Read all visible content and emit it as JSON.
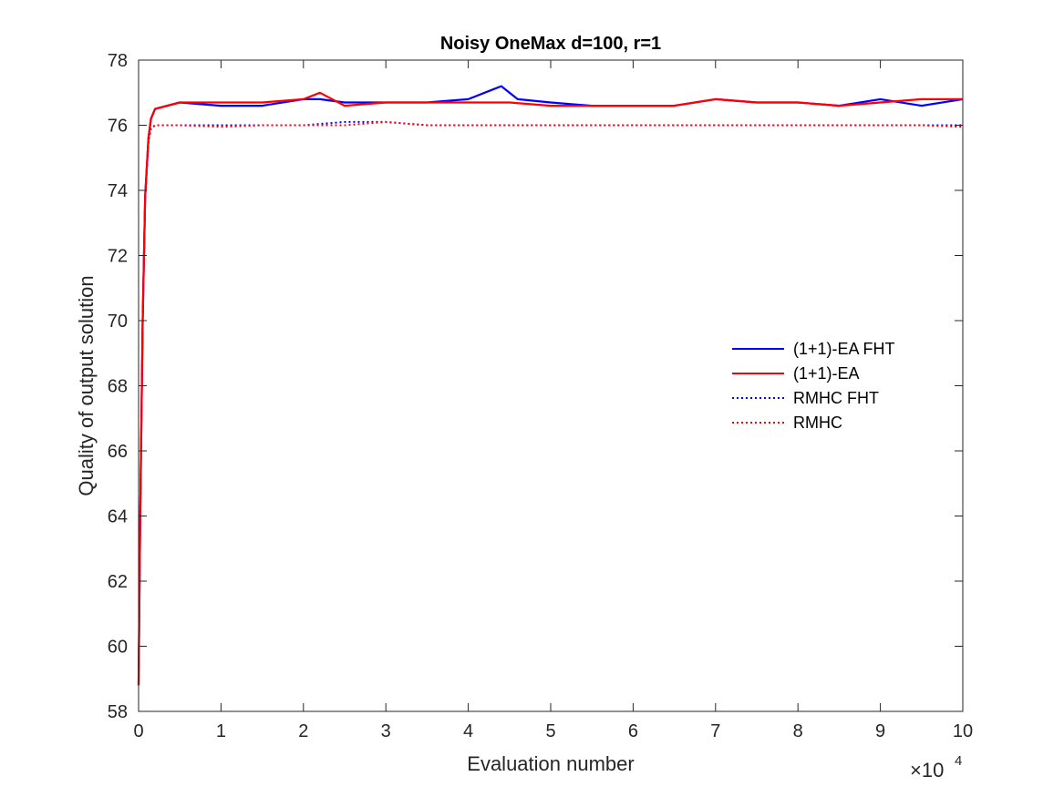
{
  "chart_data": {
    "type": "line",
    "title": "Noisy OneMax d=100, r=1",
    "xlabel": "Evaluation number",
    "ylabel": "Quality of output solution",
    "x_exponent_base": "×10",
    "x_exponent_power": "4",
    "xlim": [
      0,
      10
    ],
    "ylim": [
      58,
      78
    ],
    "xticks": [
      0,
      1,
      2,
      3,
      4,
      5,
      6,
      7,
      8,
      9,
      10
    ],
    "yticks": [
      58,
      60,
      62,
      64,
      66,
      68,
      70,
      72,
      74,
      76,
      78
    ],
    "grid": false,
    "legend_position": "right",
    "series": [
      {
        "name": "(1+1)-EA FHT",
        "color": "#0000ff",
        "style": "solid",
        "x": [
          0,
          0.02,
          0.05,
          0.08,
          0.12,
          0.15,
          0.2,
          0.5,
          1,
          1.5,
          2,
          2.2,
          2.5,
          3,
          3.5,
          4,
          4.3,
          4.4,
          4.6,
          5,
          5.5,
          6,
          6.5,
          7,
          7.5,
          8,
          8.5,
          9,
          9.5,
          10
        ],
        "y": [
          58.8,
          64.0,
          70.0,
          73.8,
          75.6,
          76.2,
          76.5,
          76.7,
          76.6,
          76.6,
          76.8,
          76.8,
          76.7,
          76.7,
          76.7,
          76.8,
          77.1,
          77.2,
          76.8,
          76.7,
          76.6,
          76.6,
          76.6,
          76.8,
          76.7,
          76.7,
          76.6,
          76.8,
          76.6,
          76.8
        ]
      },
      {
        "name": "(1+1)-EA",
        "color": "#ff0000",
        "style": "solid",
        "x": [
          0,
          0.02,
          0.05,
          0.08,
          0.12,
          0.15,
          0.2,
          0.5,
          1,
          1.5,
          2,
          2.2,
          2.5,
          3,
          3.5,
          4,
          4.5,
          5,
          5.5,
          6,
          6.5,
          7,
          7.5,
          8,
          8.5,
          9,
          9.5,
          10
        ],
        "y": [
          58.8,
          64.0,
          70.0,
          73.8,
          75.6,
          76.2,
          76.5,
          76.7,
          76.7,
          76.7,
          76.8,
          77.0,
          76.6,
          76.7,
          76.7,
          76.7,
          76.7,
          76.6,
          76.6,
          76.6,
          76.6,
          76.8,
          76.7,
          76.7,
          76.6,
          76.7,
          76.8,
          76.8
        ]
      },
      {
        "name": "RMHC FHT",
        "color": "#0000ff",
        "style": "dotted",
        "x": [
          0,
          0.02,
          0.05,
          0.08,
          0.12,
          0.15,
          0.2,
          0.5,
          1,
          1.5,
          2,
          2.5,
          3,
          3.5,
          4,
          4.5,
          5,
          5.5,
          6,
          6.5,
          7,
          7.5,
          8,
          8.5,
          9,
          9.5,
          10
        ],
        "y": [
          58.8,
          64.0,
          70.0,
          73.8,
          75.5,
          75.9,
          76.0,
          76.0,
          76.0,
          76.0,
          76.0,
          76.1,
          76.1,
          76.0,
          76.0,
          76.0,
          76.0,
          76.0,
          76.0,
          76.0,
          76.0,
          76.0,
          76.0,
          76.0,
          76.0,
          76.0,
          76.0
        ]
      },
      {
        "name": "RMHC",
        "color": "#ff0000",
        "style": "dotted",
        "x": [
          0,
          0.02,
          0.05,
          0.08,
          0.12,
          0.15,
          0.2,
          0.5,
          1,
          1.5,
          2,
          2.5,
          3,
          3.5,
          4,
          4.5,
          5,
          5.5,
          6,
          6.5,
          7,
          7.5,
          8,
          8.5,
          9,
          9.5,
          10
        ],
        "y": [
          58.8,
          64.0,
          70.0,
          73.8,
          75.5,
          75.9,
          76.0,
          76.0,
          75.95,
          76.0,
          76.0,
          76.0,
          76.1,
          76.0,
          76.0,
          76.0,
          76.0,
          76.0,
          76.0,
          76.0,
          76.0,
          76.0,
          76.0,
          76.0,
          76.0,
          76.0,
          75.95
        ]
      }
    ]
  }
}
